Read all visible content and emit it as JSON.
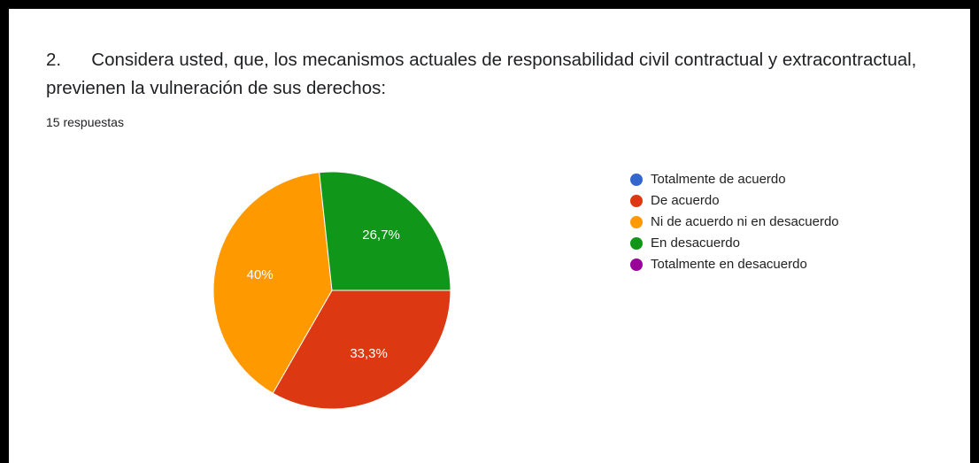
{
  "chart_data": {
    "type": "pie",
    "title": "2.      Considera usted, que, los mecanismos actuales de responsabilidad civil contractual y extracontractual, previenen la vulneración de sus derechos:",
    "subtitle": "15 respuestas",
    "categories": [
      "Totalmente de acuerdo",
      "De acuerdo",
      "Ni de acuerdo ni en desacuerdo",
      "En desacuerdo",
      "Totalmente en desacuerdo"
    ],
    "values": [
      0,
      33.3,
      40,
      26.7,
      0
    ],
    "value_labels": [
      null,
      "33,3%",
      "40%",
      "26,7%",
      null
    ],
    "colors": [
      "#3366cc",
      "#dc3912",
      "#ff9900",
      "#109618",
      "#990099"
    ],
    "legend": "right"
  }
}
